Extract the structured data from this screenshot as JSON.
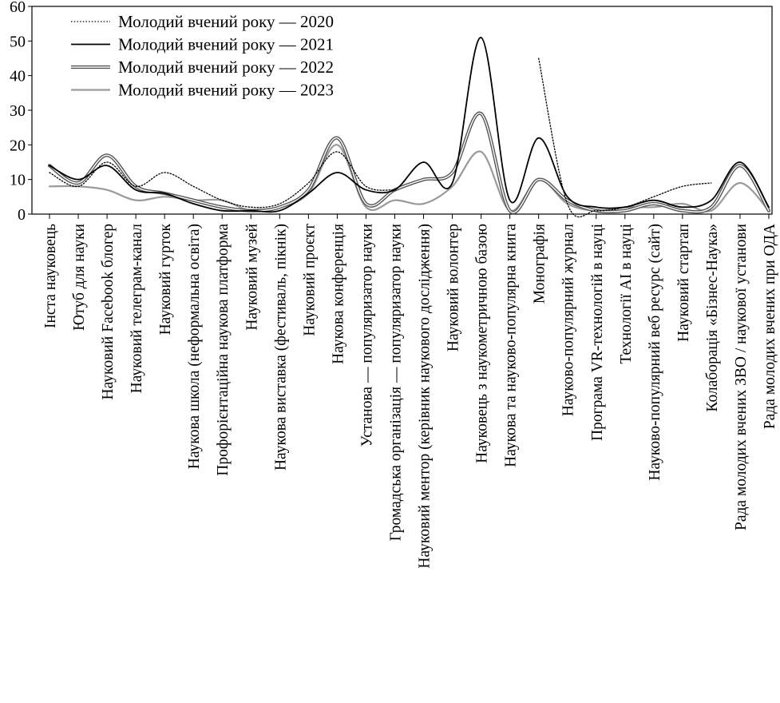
{
  "chart_data": {
    "type": "line",
    "ylim": [
      0,
      60
    ],
    "yticks": [
      0,
      10,
      20,
      30,
      40,
      50,
      60
    ],
    "grid": false,
    "legend_position": "top-left",
    "categories": [
      "Інста науковець",
      "Ютуб для науки",
      "Науковий Facebook блогер",
      "Науковий телеграм-канал",
      "Науковий гурток",
      "Наукова школа (неформальна освіта)",
      "Профорієнтаційна наукова платформа",
      "Науковий музей",
      "Наукова виставка (фестиваль, пікнік)",
      "Науковий проєкт",
      "Наукова конференція",
      "Установа — популяризатор науки",
      "Громадська організація — популяризатор науки",
      "Науковий ментор (керівник наукового дослідження)",
      "Науковий волонтер",
      "Науковець з наукометричною базою",
      "Наукова та науково-популярна книга",
      "Монографія",
      "Науково-популярний журнал",
      "Програма VR-технологій в науці",
      "Технології AI в науці",
      "Науково-популярний веб ресурс (сайт)",
      "Науковий стартап",
      "Колаборація «Бізнес-Наука»",
      "Рада молодих вчених ЗВО / наукової установи",
      "Рада молодих вчених при ОДА"
    ],
    "series": [
      {
        "name": "Молодий вчений року — 2020",
        "style": "dotted",
        "color": "#000000",
        "values": [
          12,
          8,
          15,
          8,
          12,
          8,
          4,
          2,
          3,
          9,
          18,
          8,
          7,
          null,
          null,
          null,
          null,
          45,
          3,
          1,
          2,
          5,
          8,
          9,
          null,
          null
        ]
      },
      {
        "name": "Молодий вчений року — 2021",
        "style": "solid",
        "color": "#000000",
        "values": [
          14,
          10,
          14,
          7,
          6,
          3,
          1,
          1,
          1,
          6,
          12,
          7,
          7,
          15,
          9,
          51,
          4,
          22,
          5,
          2,
          2,
          4,
          2,
          4,
          15,
          2
        ]
      },
      {
        "name": "Молодий вчений року — 2022",
        "style": "double",
        "color": "#555555",
        "values": [
          14,
          9,
          17,
          8,
          6,
          4,
          2,
          1,
          2,
          7,
          22,
          3,
          7,
          10,
          12,
          29,
          1,
          10,
          4,
          1,
          1,
          3,
          1,
          2,
          14,
          1
        ]
      },
      {
        "name": "Молодий вчений року — 2023",
        "style": "solid",
        "color": "#9a9a9a",
        "values": [
          8,
          8,
          7,
          4,
          5,
          4,
          4,
          1,
          2,
          6,
          20,
          2,
          4,
          3,
          8,
          18,
          1,
          10,
          3,
          1,
          2,
          2,
          3,
          1,
          9,
          1
        ]
      }
    ]
  }
}
